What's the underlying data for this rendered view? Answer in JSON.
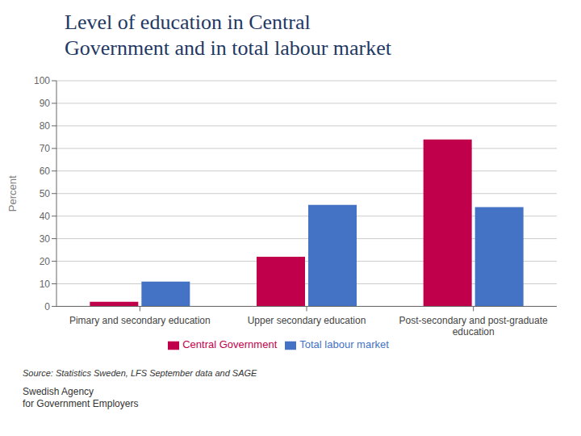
{
  "chart_data": {
    "type": "bar",
    "title": "Level of education in Central\nGovernment and in total labour market",
    "ylabel": "Percent",
    "categories": [
      "Pimary and secondary education",
      "Upper secondary education",
      "Post-secondary and post-graduate\neducation"
    ],
    "series": [
      {
        "name": "Central Government",
        "color": "#C0004B",
        "values": [
          2,
          22,
          74
        ]
      },
      {
        "name": "Total labour market",
        "color": "#4472C4",
        "values": [
          11,
          45,
          44
        ]
      }
    ],
    "ylim": [
      0,
      100
    ],
    "yticks": [
      0,
      10,
      20,
      30,
      40,
      50,
      60,
      70,
      80,
      90,
      100
    ],
    "grid": true,
    "legend": "bottom",
    "annotations": [
      "Source: Statistics Sweden, LFS September data and SAGE",
      "Swedish Agency\nfor Government Employers"
    ]
  }
}
